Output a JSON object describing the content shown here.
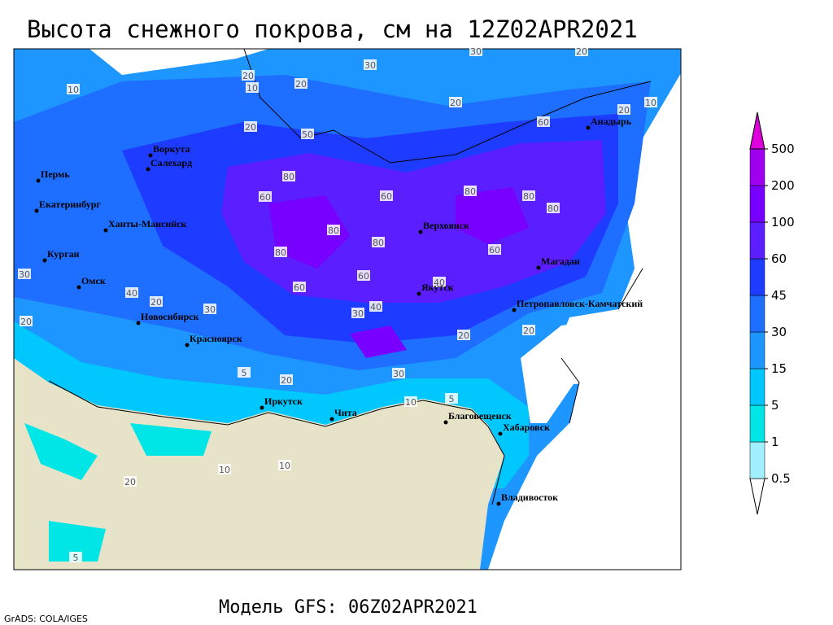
{
  "header": {
    "title": "Высота снежного покрова, см на 12Z02APR2021"
  },
  "footer": {
    "model": "Модель GFS: 06Z02APR2021",
    "credit": "GrADS: COLA/IGES"
  },
  "colorbar": {
    "levels": [
      0.5,
      1,
      5,
      15,
      30,
      45,
      60,
      100,
      200,
      500
    ],
    "colors": [
      "#ffffff",
      "#a0f0ff",
      "#00e6e6",
      "#00c8ff",
      "#1e96ff",
      "#1e6eff",
      "#1e3cff",
      "#5a1eff",
      "#7800ff",
      "#a000f0",
      "#dd00dd"
    ]
  },
  "map": {
    "cities": [
      "Пермь",
      "Екатеринбург",
      "Ханты-Мансийск",
      "Курган",
      "Омск",
      "Новосибирск",
      "Красноярск",
      "Иркутск",
      "Чита",
      "Благовещенск",
      "Хабаровск",
      "Владивосток",
      "Якутск",
      "Верхоянск",
      "Магадан",
      "Анадырь",
      "Петропавловск-Камчатский",
      "Воркута",
      "Салехард"
    ],
    "contour_labels": [
      30,
      30,
      20,
      20,
      10,
      20,
      20,
      10,
      20,
      10,
      20,
      50,
      60,
      80,
      60,
      60,
      80,
      80,
      80,
      80,
      80,
      80,
      60,
      60,
      60,
      40,
      40,
      20,
      30,
      30,
      40,
      20,
      20,
      30,
      20,
      5,
      20,
      30,
      10,
      5,
      20,
      10,
      10,
      5
    ]
  }
}
